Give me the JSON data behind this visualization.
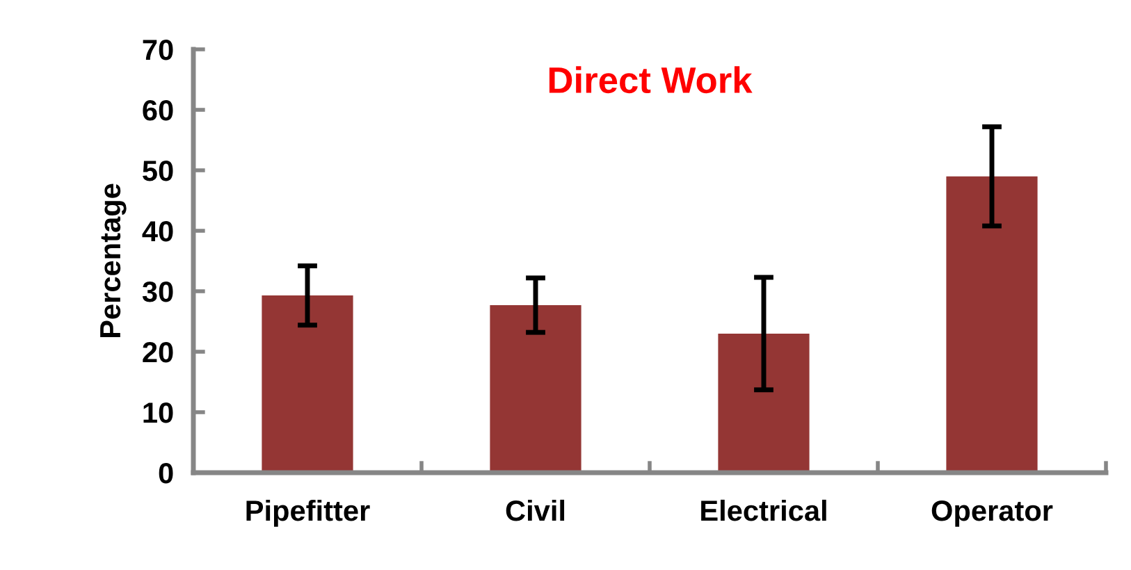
{
  "chart_data": {
    "type": "bar",
    "title": "Direct Work",
    "ylabel": "Percentage",
    "categories": [
      "Pipefitter",
      "Civil",
      "Electrical",
      "Operator"
    ],
    "values": [
      29.3,
      27.7,
      23.0,
      49.0
    ],
    "errors": [
      4.9,
      4.5,
      9.3,
      8.2
    ],
    "color": "#943634",
    "ylim": [
      0,
      70
    ],
    "yticks": [
      0,
      10,
      20,
      30,
      40,
      50,
      60,
      70
    ],
    "grid": false
  }
}
